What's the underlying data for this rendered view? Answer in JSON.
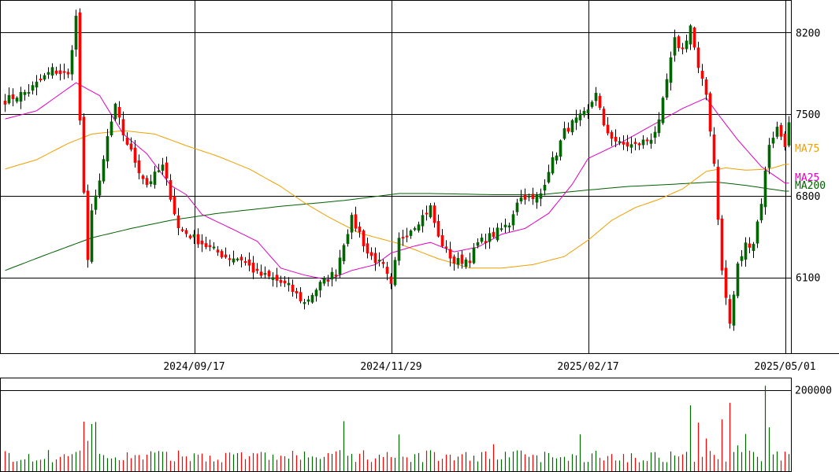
{
  "chart_data": {
    "type": "candlestick",
    "price": {
      "ylim": [
        5450,
        8480
      ],
      "y_ticks": [
        8200,
        7500,
        6800,
        6100
      ],
      "y_tick_labels": [
        "8200",
        "7500",
        "6800",
        "6100"
      ]
    },
    "x_tick_labels": [
      "2024/09/17",
      "2024/11/29",
      "2025/02/17",
      "2025/05/01"
    ],
    "x_tick_index": [
      48,
      98,
      148,
      198
    ],
    "ma_legend": [
      {
        "label": "MA75",
        "color": "#f0a000"
      },
      {
        "label": "MA25",
        "color": "#e000c0"
      },
      {
        "label": "MA200",
        "color": "#006000"
      }
    ],
    "ma": {
      "ma25": [
        [
          0,
          7460
        ],
        [
          8,
          7530
        ],
        [
          18,
          7770
        ],
        [
          24,
          7660
        ],
        [
          30,
          7330
        ],
        [
          36,
          7160
        ],
        [
          42,
          6890
        ],
        [
          46,
          6810
        ],
        [
          50,
          6640
        ],
        [
          58,
          6510
        ],
        [
          64,
          6410
        ],
        [
          70,
          6180
        ],
        [
          76,
          6120
        ],
        [
          82,
          6080
        ],
        [
          88,
          6160
        ],
        [
          94,
          6210
        ],
        [
          98,
          6310
        ],
        [
          104,
          6370
        ],
        [
          108,
          6400
        ],
        [
          114,
          6320
        ],
        [
          120,
          6360
        ],
        [
          126,
          6470
        ],
        [
          132,
          6520
        ],
        [
          138,
          6650
        ],
        [
          144,
          6900
        ],
        [
          148,
          7120
        ],
        [
          156,
          7250
        ],
        [
          164,
          7400
        ],
        [
          172,
          7550
        ],
        [
          178,
          7640
        ],
        [
          181,
          7500
        ],
        [
          186,
          7280
        ],
        [
          192,
          7050
        ],
        [
          198,
          6910
        ]
      ],
      "ma75": [
        [
          0,
          7030
        ],
        [
          8,
          7110
        ],
        [
          16,
          7250
        ],
        [
          22,
          7330
        ],
        [
          30,
          7360
        ],
        [
          38,
          7330
        ],
        [
          46,
          7230
        ],
        [
          54,
          7140
        ],
        [
          62,
          7030
        ],
        [
          70,
          6880
        ],
        [
          76,
          6740
        ],
        [
          82,
          6620
        ],
        [
          90,
          6480
        ],
        [
          100,
          6390
        ],
        [
          110,
          6260
        ],
        [
          118,
          6180
        ],
        [
          126,
          6180
        ],
        [
          134,
          6210
        ],
        [
          142,
          6280
        ],
        [
          148,
          6420
        ],
        [
          154,
          6590
        ],
        [
          160,
          6700
        ],
        [
          166,
          6770
        ],
        [
          172,
          6860
        ],
        [
          178,
          7010
        ],
        [
          183,
          7040
        ],
        [
          188,
          7020
        ],
        [
          194,
          7030
        ],
        [
          198,
          7070
        ]
      ],
      "ma200": [
        [
          0,
          6160
        ],
        [
          10,
          6290
        ],
        [
          22,
          6440
        ],
        [
          32,
          6520
        ],
        [
          42,
          6590
        ],
        [
          54,
          6650
        ],
        [
          70,
          6710
        ],
        [
          86,
          6760
        ],
        [
          100,
          6820
        ],
        [
          108,
          6820
        ],
        [
          124,
          6810
        ],
        [
          136,
          6810
        ],
        [
          148,
          6850
        ],
        [
          158,
          6880
        ],
        [
          170,
          6900
        ],
        [
          180,
          6920
        ],
        [
          188,
          6890
        ],
        [
          198,
          6840
        ]
      ]
    },
    "volume": {
      "ylim": [
        0,
        230000
      ],
      "y_ticks": [
        200000
      ],
      "y_tick_labels": [
        "200000"
      ]
    }
  }
}
